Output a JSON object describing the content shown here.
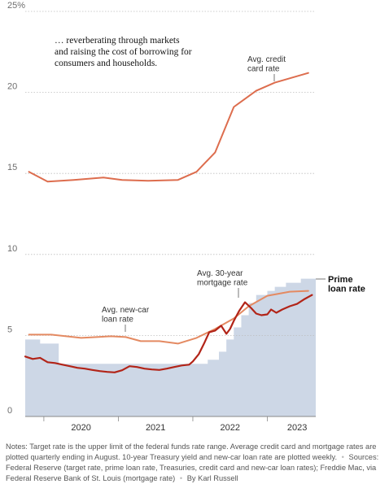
{
  "chart_data": {
    "type": "line",
    "ylim": [
      0,
      25
    ],
    "y_ticks": [
      {
        "value": 0,
        "label": "0"
      },
      {
        "value": 5,
        "label": "5"
      },
      {
        "value": 10,
        "label": "10"
      },
      {
        "value": 15,
        "label": "15"
      },
      {
        "value": 20,
        "label": "20"
      },
      {
        "value": 25,
        "label": "25%"
      }
    ],
    "xlim": [
      2019.75,
      2023.65
    ],
    "x_tick_marks": [
      2020.0,
      2021.0,
      2022.0,
      2023.0
    ],
    "x_tick_labels": [
      {
        "value": 2020.5,
        "label": "2020"
      },
      {
        "value": 2021.5,
        "label": "2021"
      },
      {
        "value": 2022.5,
        "label": "2022"
      },
      {
        "value": 2023.4,
        "label": "2023"
      }
    ],
    "grid": true,
    "annotation": "… reverberating through markets and raising the cost of borrowing for consumers and households.",
    "series": [
      {
        "name": "Avg. credit card rate",
        "style": "line",
        "color": "#dd6d4e",
        "points": [
          [
            2019.8,
            15.1
          ],
          [
            2020.05,
            14.5
          ],
          [
            2020.4,
            14.6
          ],
          [
            2020.8,
            14.75
          ],
          [
            2021.05,
            14.6
          ],
          [
            2021.4,
            14.55
          ],
          [
            2021.8,
            14.6
          ],
          [
            2022.05,
            15.1
          ],
          [
            2022.3,
            16.3
          ],
          [
            2022.55,
            19.1
          ],
          [
            2022.85,
            20.1
          ],
          [
            2023.1,
            20.6
          ],
          [
            2023.55,
            21.2
          ]
        ]
      },
      {
        "name": "Avg. new-car loan rate",
        "style": "line",
        "color": "#e48a62",
        "points": [
          [
            2019.8,
            5.05
          ],
          [
            2020.1,
            5.05
          ],
          [
            2020.5,
            4.85
          ],
          [
            2020.9,
            4.95
          ],
          [
            2021.1,
            4.9
          ],
          [
            2021.3,
            4.65
          ],
          [
            2021.55,
            4.65
          ],
          [
            2021.8,
            4.5
          ],
          [
            2022.05,
            4.85
          ],
          [
            2022.3,
            5.4
          ],
          [
            2022.55,
            6.05
          ],
          [
            2022.75,
            6.8
          ],
          [
            2023.0,
            7.45
          ],
          [
            2023.3,
            7.7
          ],
          [
            2023.55,
            7.75
          ]
        ]
      },
      {
        "name": "Avg. 30-year mortgage rate",
        "style": "line",
        "color": "#b22418",
        "points": [
          [
            2019.75,
            3.7
          ],
          [
            2019.85,
            3.55
          ],
          [
            2019.95,
            3.62
          ],
          [
            2020.05,
            3.35
          ],
          [
            2020.15,
            3.3
          ],
          [
            2020.25,
            3.2
          ],
          [
            2020.35,
            3.1
          ],
          [
            2020.45,
            3.0
          ],
          [
            2020.55,
            2.95
          ],
          [
            2020.65,
            2.87
          ],
          [
            2020.75,
            2.8
          ],
          [
            2020.85,
            2.75
          ],
          [
            2020.95,
            2.72
          ],
          [
            2021.05,
            2.85
          ],
          [
            2021.15,
            3.1
          ],
          [
            2021.25,
            3.05
          ],
          [
            2021.35,
            2.95
          ],
          [
            2021.45,
            2.9
          ],
          [
            2021.55,
            2.87
          ],
          [
            2021.65,
            2.95
          ],
          [
            2021.75,
            3.05
          ],
          [
            2021.85,
            3.15
          ],
          [
            2021.95,
            3.2
          ],
          [
            2022.0,
            3.4
          ],
          [
            2022.08,
            3.85
          ],
          [
            2022.15,
            4.5
          ],
          [
            2022.22,
            5.2
          ],
          [
            2022.3,
            5.3
          ],
          [
            2022.38,
            5.6
          ],
          [
            2022.45,
            5.1
          ],
          [
            2022.5,
            5.4
          ],
          [
            2022.55,
            5.9
          ],
          [
            2022.62,
            6.5
          ],
          [
            2022.7,
            7.05
          ],
          [
            2022.78,
            6.7
          ],
          [
            2022.85,
            6.35
          ],
          [
            2022.92,
            6.25
          ],
          [
            2023.0,
            6.3
          ],
          [
            2023.05,
            6.6
          ],
          [
            2023.12,
            6.4
          ],
          [
            2023.2,
            6.6
          ],
          [
            2023.3,
            6.8
          ],
          [
            2023.4,
            6.95
          ],
          [
            2023.5,
            7.25
          ],
          [
            2023.6,
            7.5
          ]
        ]
      },
      {
        "name": "Target rate",
        "style": "step-area",
        "color": "#cdd7e6",
        "points": [
          [
            2019.75,
            4.75
          ],
          [
            2019.95,
            4.5
          ],
          [
            2020.2,
            3.25
          ],
          [
            2021.05,
            3.25
          ],
          [
            2021.95,
            3.25
          ],
          [
            2022.2,
            3.5
          ],
          [
            2022.35,
            4.0
          ],
          [
            2022.45,
            4.75
          ],
          [
            2022.55,
            5.5
          ],
          [
            2022.65,
            6.25
          ],
          [
            2022.75,
            7.0
          ],
          [
            2022.85,
            7.5
          ],
          [
            2023.0,
            7.75
          ],
          [
            2023.1,
            8.0
          ],
          [
            2023.25,
            8.25
          ],
          [
            2023.45,
            8.5
          ],
          [
            2023.65,
            8.5
          ]
        ]
      },
      {
        "name": "Prime loan rate",
        "style": "label-only",
        "value": 8.5
      }
    ],
    "labels": {
      "credit_card": [
        "Avg. credit",
        "card rate"
      ],
      "new_car": [
        "Avg. new-car",
        "loan rate"
      ],
      "mortgage": [
        "Avg. 30-year",
        "mortgage rate"
      ],
      "prime": [
        "Prime",
        "loan rate"
      ]
    }
  },
  "notes": {
    "text": "Notes: Target rate is the upper limit of the federal funds rate range. Average credit card and mortgage rates are plotted quarterly ending in August. 10-year Treasury yield and new-car loan rate are plotted weekly.",
    "sources": "Sources: Federal Reserve (target rate, prime loan rate, Treasuries, credit card and new-car loan rates); Freddie Mac, via Federal Reserve Bank of St. Louis (mortgage rate)",
    "byline": "By Karl Russell"
  }
}
